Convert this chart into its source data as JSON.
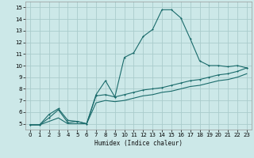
{
  "xlabel": "Humidex (Indice chaleur)",
  "bg_color": "#cce8e8",
  "grid_color": "#aacccc",
  "line_color": "#1a6b6b",
  "xlim": [
    -0.5,
    23.5
  ],
  "ylim": [
    4.5,
    15.5
  ],
  "xticks": [
    0,
    1,
    2,
    3,
    4,
    5,
    6,
    7,
    8,
    9,
    10,
    11,
    12,
    13,
    14,
    15,
    16,
    17,
    18,
    19,
    20,
    21,
    22,
    23
  ],
  "yticks": [
    5,
    6,
    7,
    8,
    9,
    10,
    11,
    12,
    13,
    14,
    15
  ],
  "series1_x": [
    0,
    1,
    2,
    3,
    4,
    5,
    6,
    7,
    8,
    9,
    10,
    11,
    12,
    13,
    14,
    15,
    16,
    17,
    18,
    19,
    20,
    21,
    22,
    23
  ],
  "series1_y": [
    4.9,
    4.9,
    5.8,
    6.3,
    5.3,
    5.2,
    5.0,
    7.5,
    8.7,
    7.3,
    10.7,
    11.1,
    12.5,
    13.1,
    14.8,
    14.8,
    14.1,
    12.3,
    10.4,
    10.0,
    10.0,
    9.9,
    10.0,
    9.8
  ],
  "series2_x": [
    0,
    1,
    2,
    3,
    4,
    5,
    6,
    7,
    8,
    9,
    10,
    11,
    12,
    13,
    14,
    15,
    16,
    17,
    18,
    19,
    20,
    21,
    22,
    23
  ],
  "series2_y": [
    4.9,
    4.9,
    5.5,
    6.2,
    5.1,
    5.2,
    5.0,
    7.4,
    7.5,
    7.3,
    7.5,
    7.7,
    7.9,
    8.0,
    8.1,
    8.3,
    8.5,
    8.7,
    8.8,
    9.0,
    9.2,
    9.3,
    9.5,
    9.8
  ],
  "series3_x": [
    0,
    1,
    2,
    3,
    4,
    5,
    6,
    7,
    8,
    9,
    10,
    11,
    12,
    13,
    14,
    15,
    16,
    17,
    18,
    19,
    20,
    21,
    22,
    23
  ],
  "series3_y": [
    4.9,
    4.9,
    5.2,
    5.5,
    5.0,
    5.0,
    5.0,
    6.8,
    7.0,
    6.9,
    7.0,
    7.2,
    7.4,
    7.5,
    7.7,
    7.8,
    8.0,
    8.2,
    8.3,
    8.5,
    8.7,
    8.8,
    9.0,
    9.3
  ]
}
